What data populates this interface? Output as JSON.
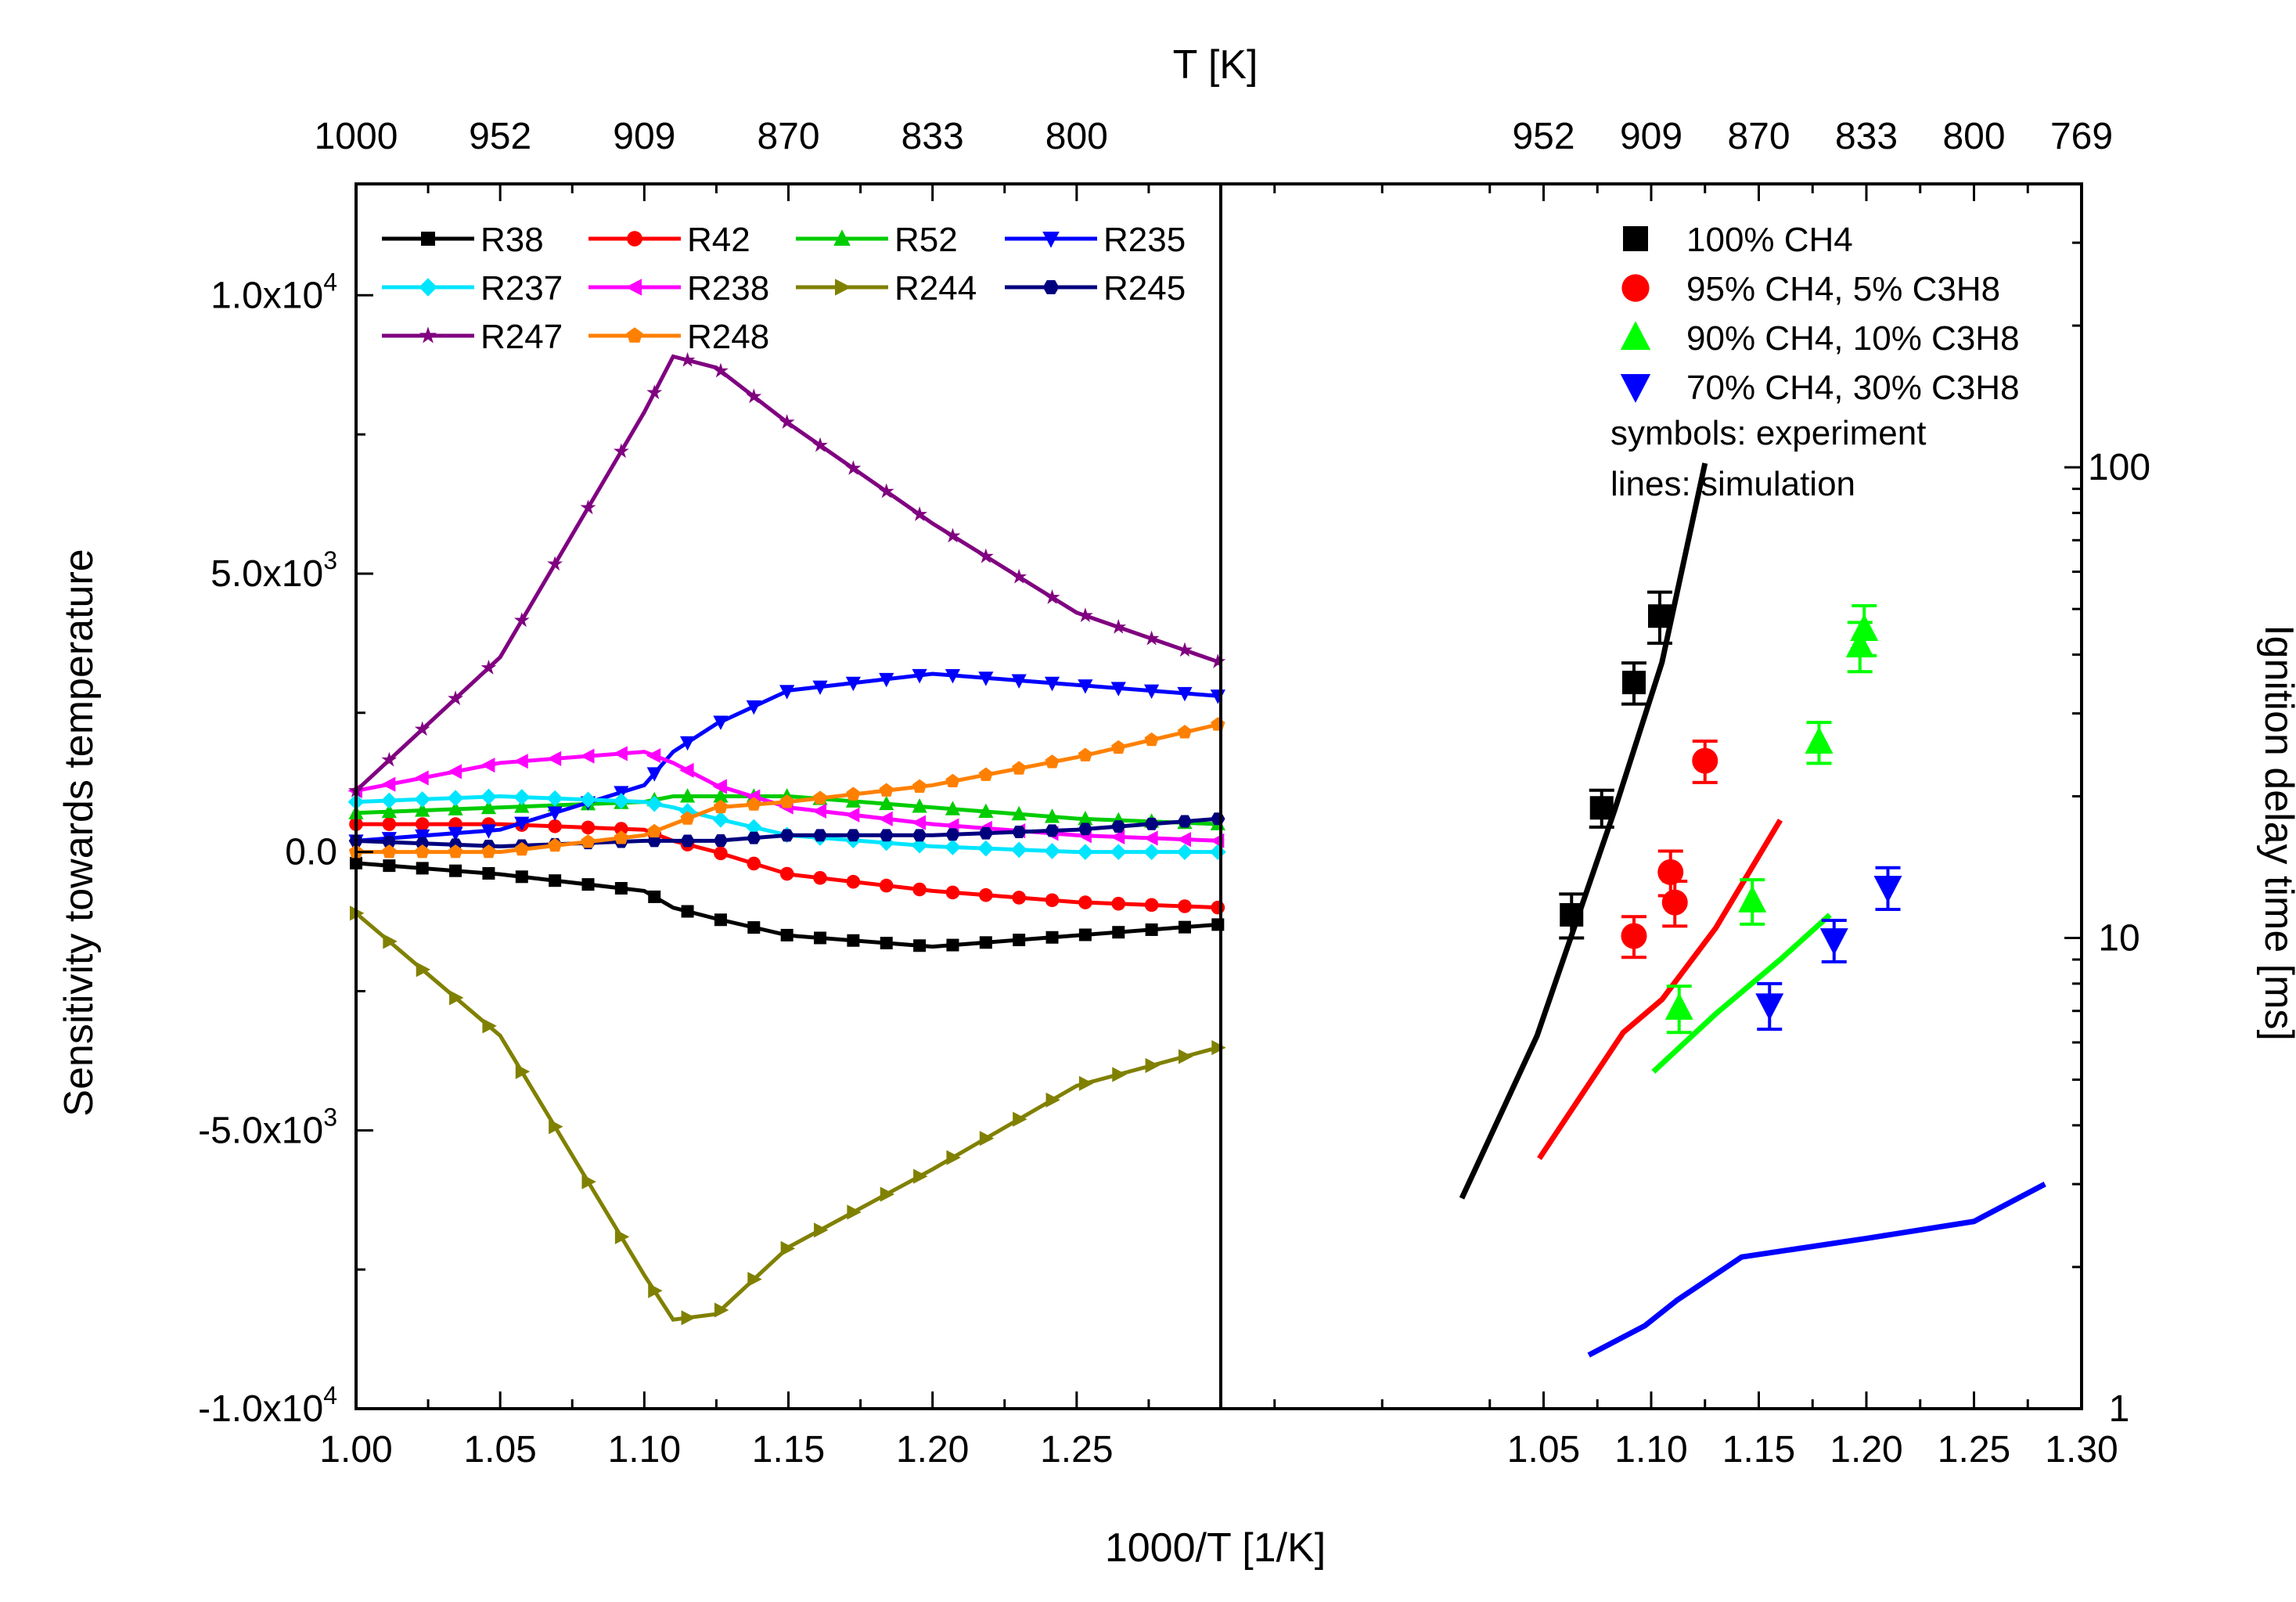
{
  "chart_data": {
    "type": "line",
    "top_axis": {
      "title": "T [K]",
      "tick_labels_left": [
        "1000",
        "952",
        "909",
        "870",
        "833",
        "800"
      ],
      "tick_labels_right": [
        "952",
        "909",
        "870",
        "833",
        "800",
        "769"
      ]
    },
    "x_axis": {
      "title": "1000/T [1/K]",
      "tick_labels_left": [
        "1.00",
        "1.05",
        "1.10",
        "1.15",
        "1.20",
        "1.25"
      ],
      "tick_labels_right": [
        "1.05",
        "1.10",
        "1.15",
        "1.20",
        "1.25",
        "1.30"
      ]
    },
    "left_panel": {
      "ylabel": "Sensitivity towards temperature",
      "xlim": [
        1.0,
        1.3
      ],
      "ylim": [
        -10000,
        12000
      ],
      "y_tick_labels": [
        "-1.0x10",
        "-5.0x10",
        "0.0",
        "5.0x10",
        "1.0x10"
      ],
      "y_tick_exponents": [
        "4",
        "3",
        "",
        "3",
        "4"
      ],
      "x": [
        1.0,
        1.05,
        1.1,
        1.11,
        1.125,
        1.15,
        1.2,
        1.25,
        1.3
      ],
      "series": [
        {
          "name": "R38",
          "color": "#000000",
          "marker": "square",
          "values": [
            -200,
            -400,
            -700,
            -1000,
            -1200,
            -1500,
            -1700,
            -1500,
            -1300
          ]
        },
        {
          "name": "R42",
          "color": "#ff0000",
          "marker": "circle",
          "values": [
            500,
            500,
            400,
            200,
            0,
            -400,
            -700,
            -900,
            -1000
          ]
        },
        {
          "name": "R52",
          "color": "#00cc00",
          "marker": "triangle-up",
          "values": [
            700,
            800,
            900,
            1000,
            1000,
            1000,
            800,
            600,
            500
          ]
        },
        {
          "name": "R235",
          "color": "#0000ff",
          "marker": "triangle-down",
          "values": [
            200,
            400,
            1200,
            1800,
            2300,
            2900,
            3200,
            3000,
            2800
          ]
        },
        {
          "name": "R237",
          "color": "#00e5ff",
          "marker": "diamond",
          "values": [
            900,
            1000,
            900,
            800,
            600,
            300,
            100,
            0,
            0
          ]
        },
        {
          "name": "R238",
          "color": "#ff00ff",
          "marker": "triangle-left",
          "values": [
            1100,
            1600,
            1800,
            1600,
            1200,
            800,
            500,
            300,
            200
          ]
        },
        {
          "name": "R244",
          "color": "#808000",
          "marker": "triangle-right",
          "values": [
            -1100,
            -3300,
            -7600,
            -8400,
            -8300,
            -7100,
            -5700,
            -4200,
            -3500
          ]
        },
        {
          "name": "R245",
          "color": "#00007f",
          "marker": "hexagon",
          "values": [
            200,
            100,
            200,
            200,
            200,
            300,
            300,
            400,
            600
          ]
        },
        {
          "name": "R247",
          "color": "#800080",
          "marker": "star",
          "values": [
            1100,
            3500,
            7900,
            8900,
            8700,
            7700,
            5900,
            4300,
            3400
          ]
        },
        {
          "name": "R248",
          "color": "#ff8000",
          "marker": "pentagon",
          "values": [
            0,
            0,
            300,
            500,
            800,
            900,
            1200,
            1700,
            2300
          ]
        }
      ]
    },
    "right_panel": {
      "ylabel": "Ignition delay time [ms]",
      "yscale": "log",
      "xlim": [
        0.9,
        1.3
      ],
      "ylim": [
        1,
        400
      ],
      "y_tick_labels": [
        "1",
        "10",
        "100"
      ],
      "legend_extra": [
        "symbols: experiment",
        "lines: simulation"
      ],
      "series": [
        {
          "name": "100% CH4",
          "color": "#000000",
          "marker": "square",
          "experiment": [
            [
              1.063,
              11.2,
              1.2
            ],
            [
              1.077,
              18.9,
              1.7
            ],
            [
              1.092,
              34.9,
              3.5
            ],
            [
              1.104,
              48.3,
              6.0
            ]
          ],
          "simulation": [
            [
              1.012,
              2.8
            ],
            [
              1.047,
              6.2
            ],
            [
              1.083,
              18.7
            ],
            [
              1.105,
              38.5
            ],
            [
              1.125,
              102
            ]
          ]
        },
        {
          "name": "95% CH4, 5% C3H8",
          "color": "#ff0000",
          "marker": "circle",
          "experiment": [
            [
              1.092,
              10.1,
              1.0
            ],
            [
              1.109,
              13.8,
              1.5
            ],
            [
              1.111,
              11.9,
              1.3
            ],
            [
              1.125,
              23.8,
              2.4
            ]
          ],
          "simulation": [
            [
              1.048,
              3.4
            ],
            [
              1.087,
              6.3
            ],
            [
              1.105,
              7.4
            ],
            [
              1.13,
              10.5
            ],
            [
              1.16,
              17.8
            ]
          ]
        },
        {
          "name": "90% CH4, 10% C3H8",
          "color": "#00ff00",
          "marker": "triangle-up",
          "experiment": [
            [
              1.113,
              7.1,
              0.8
            ],
            [
              1.147,
              12.0,
              1.3
            ],
            [
              1.178,
              26.1,
              2.6
            ],
            [
              1.197,
              41.8,
              5.0
            ],
            [
              1.199,
              45.3,
              5.5
            ]
          ],
          "simulation": [
            [
              1.101,
              5.2
            ],
            [
              1.13,
              6.9
            ],
            [
              1.16,
              9.0
            ],
            [
              1.183,
              11.2
            ]
          ]
        },
        {
          "name": "70% CH4, 30% C3H8",
          "color": "#0000ff",
          "marker": "triangle-down",
          "experiment": [
            [
              1.155,
              7.2,
              0.8
            ],
            [
              1.185,
              9.9,
              1.0
            ],
            [
              1.21,
              12.8,
              1.3
            ]
          ],
          "simulation": [
            [
              1.071,
              1.3
            ],
            [
              1.097,
              1.5
            ],
            [
              1.112,
              1.7
            ],
            [
              1.142,
              2.1
            ],
            [
              1.2,
              2.3
            ],
            [
              1.25,
              2.5
            ],
            [
              1.283,
              3.0
            ]
          ]
        }
      ]
    }
  }
}
